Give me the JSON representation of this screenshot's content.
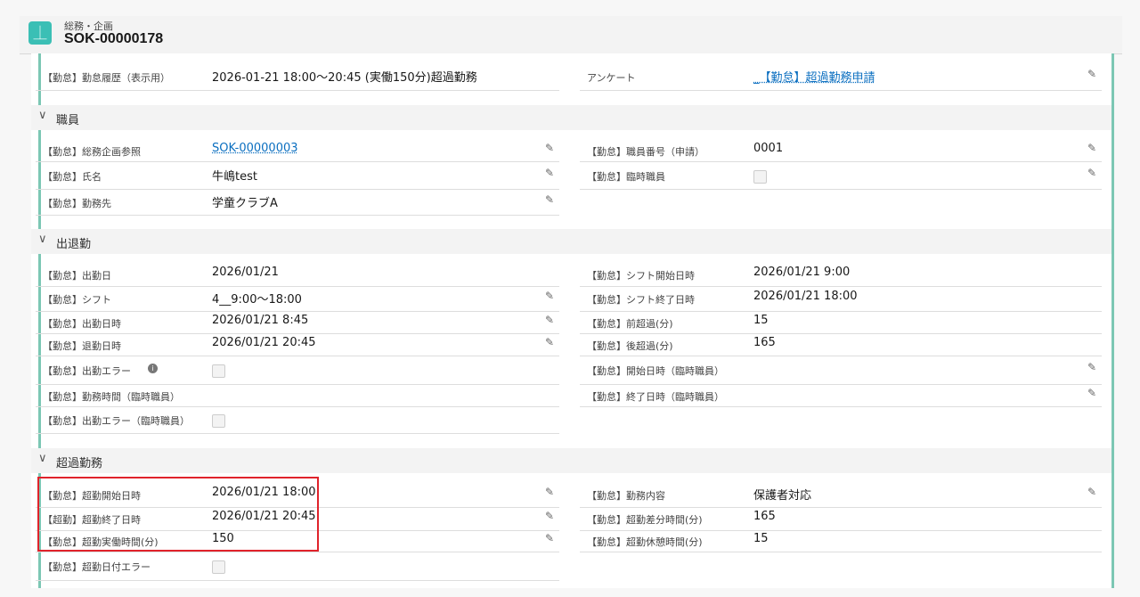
{
  "header": {
    "object_label": "総務・企画",
    "record_title": "SOK-00000178",
    "icon": "app-icon"
  },
  "top": {
    "left": [
      {
        "label": "【勤怠】勤怠履歴（表示用）",
        "value": "2026-01-21 18:00〜20:45 (実働150分)超過勤務",
        "type": "text",
        "editable": false
      }
    ],
    "right": [
      {
        "label": "アンケート",
        "value": "_【勤怠】超過勤務申請",
        "type": "link",
        "editable": true
      }
    ]
  },
  "sections": [
    {
      "title": "職員",
      "left": [
        {
          "label": "【勤怠】総務企画参照",
          "value": "SOK-00000003",
          "type": "link",
          "editable": true
        },
        {
          "label": "【勤怠】氏名",
          "value": "牛嶋test",
          "type": "text",
          "editable": true
        },
        {
          "label": "【勤怠】勤務先",
          "value": "学童クラブA",
          "type": "text",
          "editable": true
        }
      ],
      "right": [
        {
          "label": "【勤怠】職員番号（申請）",
          "value": "0001",
          "type": "text",
          "editable": true
        },
        {
          "label": "【勤怠】臨時職員",
          "value": "",
          "type": "checkbox",
          "checked": false,
          "editable": true
        }
      ]
    },
    {
      "title": "出退勤",
      "left": [
        {
          "label": "【勤怠】出勤日",
          "value": "2026/01/21",
          "type": "text",
          "editable": false
        },
        {
          "label": "【勤怠】シフト",
          "value": "4__9:00〜18:00",
          "type": "text",
          "editable": true
        },
        {
          "label": "【勤怠】出勤日時",
          "value": "2026/01/21 8:45",
          "type": "text",
          "editable": true
        },
        {
          "label": "【勤怠】退勤日時",
          "value": "2026/01/21 20:45",
          "type": "text",
          "editable": true
        },
        {
          "label": "【勤怠】出勤エラー",
          "value": "",
          "type": "checkbox",
          "checked": false,
          "editable": false,
          "info": true
        },
        {
          "label": "【勤怠】勤務時間（臨時職員）",
          "value": "",
          "type": "text",
          "editable": false
        },
        {
          "label": "【勤怠】出勤エラー（臨時職員）",
          "value": "",
          "type": "checkbox",
          "checked": false,
          "editable": false
        }
      ],
      "right": [
        {
          "label": "【勤怠】シフト開始日時",
          "value": "2026/01/21 9:00",
          "type": "text",
          "editable": false
        },
        {
          "label": "【勤怠】シフト終了日時",
          "value": "2026/01/21 18:00",
          "type": "text",
          "editable": false
        },
        {
          "label": "【勤怠】前超過(分)",
          "value": "15",
          "type": "text",
          "editable": false
        },
        {
          "label": "【勤怠】後超過(分)",
          "value": "165",
          "type": "text",
          "editable": false
        },
        {
          "label": "【勤怠】開始日時（臨時職員）",
          "value": "",
          "type": "text",
          "editable": true
        },
        {
          "label": "【勤怠】終了日時（臨時職員）",
          "value": "",
          "type": "text",
          "editable": true
        }
      ]
    },
    {
      "title": "超過勤務",
      "left": [
        {
          "label": "【勤怠】超勤開始日時",
          "value": "2026/01/21 18:00",
          "type": "text",
          "editable": true
        },
        {
          "label": "【超勤】超勤終了日時",
          "value": "2026/01/21 20:45",
          "type": "text",
          "editable": true
        },
        {
          "label": "【勤怠】超勤実働時間(分)",
          "value": "150",
          "type": "text",
          "editable": true
        },
        {
          "label": "【勤怠】超勤日付エラー",
          "value": "",
          "type": "checkbox",
          "checked": false,
          "editable": false
        }
      ],
      "right": [
        {
          "label": "【勤怠】勤務内容",
          "value": "保護者対応",
          "type": "text",
          "editable": true
        },
        {
          "label": "【勤怠】超勤差分時間(分)",
          "value": "165",
          "type": "text",
          "editable": false
        },
        {
          "label": "【勤怠】超勤休憩時間(分)",
          "value": "15",
          "type": "text",
          "editable": false
        }
      ]
    }
  ],
  "colors": {
    "accent": "#3bbfb5",
    "link": "#0b6fc0",
    "highlight": "#e0232b",
    "edge": "#7cc7b4"
  }
}
